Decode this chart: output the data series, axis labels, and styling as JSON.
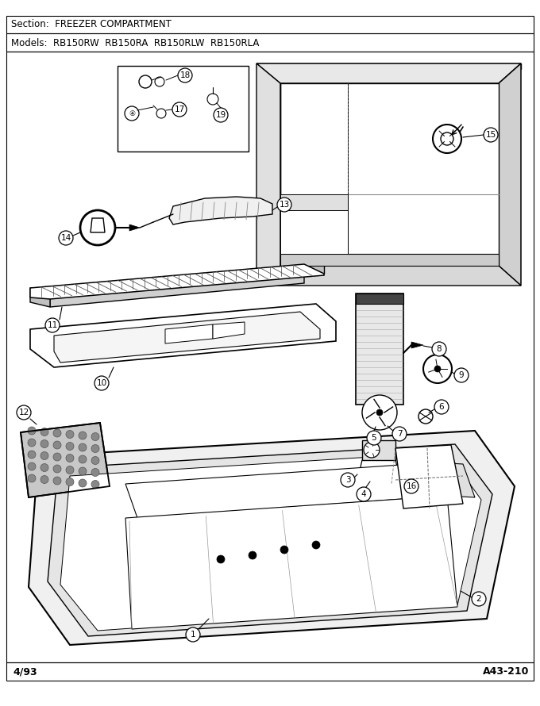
{
  "section_text": "Section:  FREEZER COMPARTMENT",
  "models_text": "Models:  RB150RW  RB150RA  RB150RLW  RB150RLA",
  "footer_left": "4/93",
  "footer_right": "A43-210",
  "bg_color": "#ffffff",
  "figsize": [
    6.8,
    8.9
  ],
  "dpi": 100
}
